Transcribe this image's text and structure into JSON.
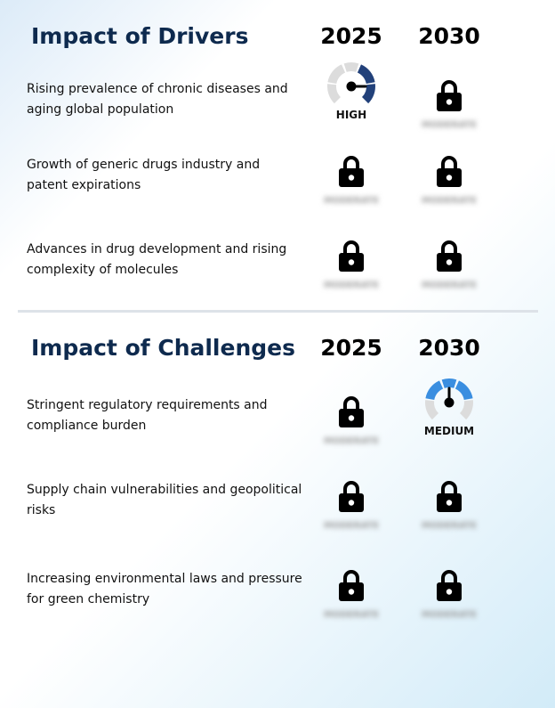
{
  "drivers": {
    "title": "Impact of Drivers",
    "years": [
      "2025",
      "2030"
    ],
    "rows": [
      {
        "label": "Rising prevalence of chronic diseases and aging global population",
        "cells": [
          {
            "type": "gauge",
            "level": "HIGH",
            "color": "#22417a"
          },
          {
            "type": "locked",
            "hidden_text": "MODERATE"
          }
        ]
      },
      {
        "label": "Growth of generic drugs industry and patent expirations",
        "cells": [
          {
            "type": "locked",
            "hidden_text": "MODERATE"
          },
          {
            "type": "locked",
            "hidden_text": "MODERATE"
          }
        ]
      },
      {
        "label": "Advances in drug development and rising complexity of molecules",
        "cells": [
          {
            "type": "locked",
            "hidden_text": "MODERATE"
          },
          {
            "type": "locked",
            "hidden_text": "MODERATE"
          }
        ]
      }
    ]
  },
  "challenges": {
    "title": "Impact of Challenges",
    "years": [
      "2025",
      "2030"
    ],
    "rows": [
      {
        "label": "Stringent regulatory requirements and compliance burden",
        "cells": [
          {
            "type": "locked",
            "hidden_text": "MODERATE"
          },
          {
            "type": "gauge",
            "level": "MEDIUM",
            "color": "#3a8ee0"
          }
        ]
      },
      {
        "label": "Supply chain vulnerabilities and geopolitical risks",
        "cells": [
          {
            "type": "locked",
            "hidden_text": "MODERATE"
          },
          {
            "type": "locked",
            "hidden_text": "MODERATE"
          }
        ]
      },
      {
        "label": "Increasing environmental laws and pressure for green chemistry",
        "cells": [
          {
            "type": "locked",
            "hidden_text": "MODERATE"
          },
          {
            "type": "locked",
            "hidden_text": "MODERATE"
          }
        ]
      }
    ]
  },
  "icons": {
    "lock": "lock-icon",
    "gauge": "gauge-icon"
  },
  "colors": {
    "title": "#0e2a4e",
    "gauge_track": "#dcdcdc",
    "high": "#22417a",
    "medium": "#3a8ee0"
  }
}
